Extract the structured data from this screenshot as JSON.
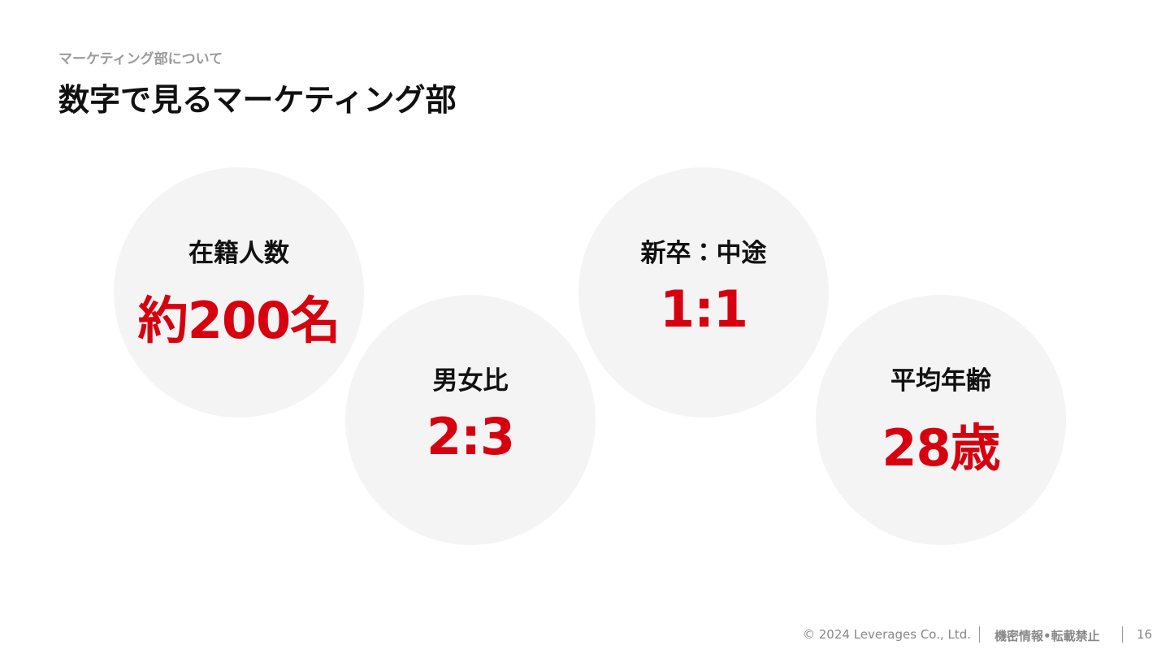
{
  "header": {
    "subtitle": "マーケティング部について",
    "title": "数字で見るマーケティング部"
  },
  "stats": [
    {
      "label": "在籍人数",
      "value": "約200名"
    },
    {
      "label": "男女比",
      "value": "2:3"
    },
    {
      "label": "新卒：中途",
      "value": "1:1"
    },
    {
      "label": "平均年齢",
      "value": "28歳"
    }
  ],
  "footer": {
    "copyright": "© 2024 Leverages Co., Ltd.",
    "notice": "機密情報•転載禁止",
    "page": "16"
  }
}
